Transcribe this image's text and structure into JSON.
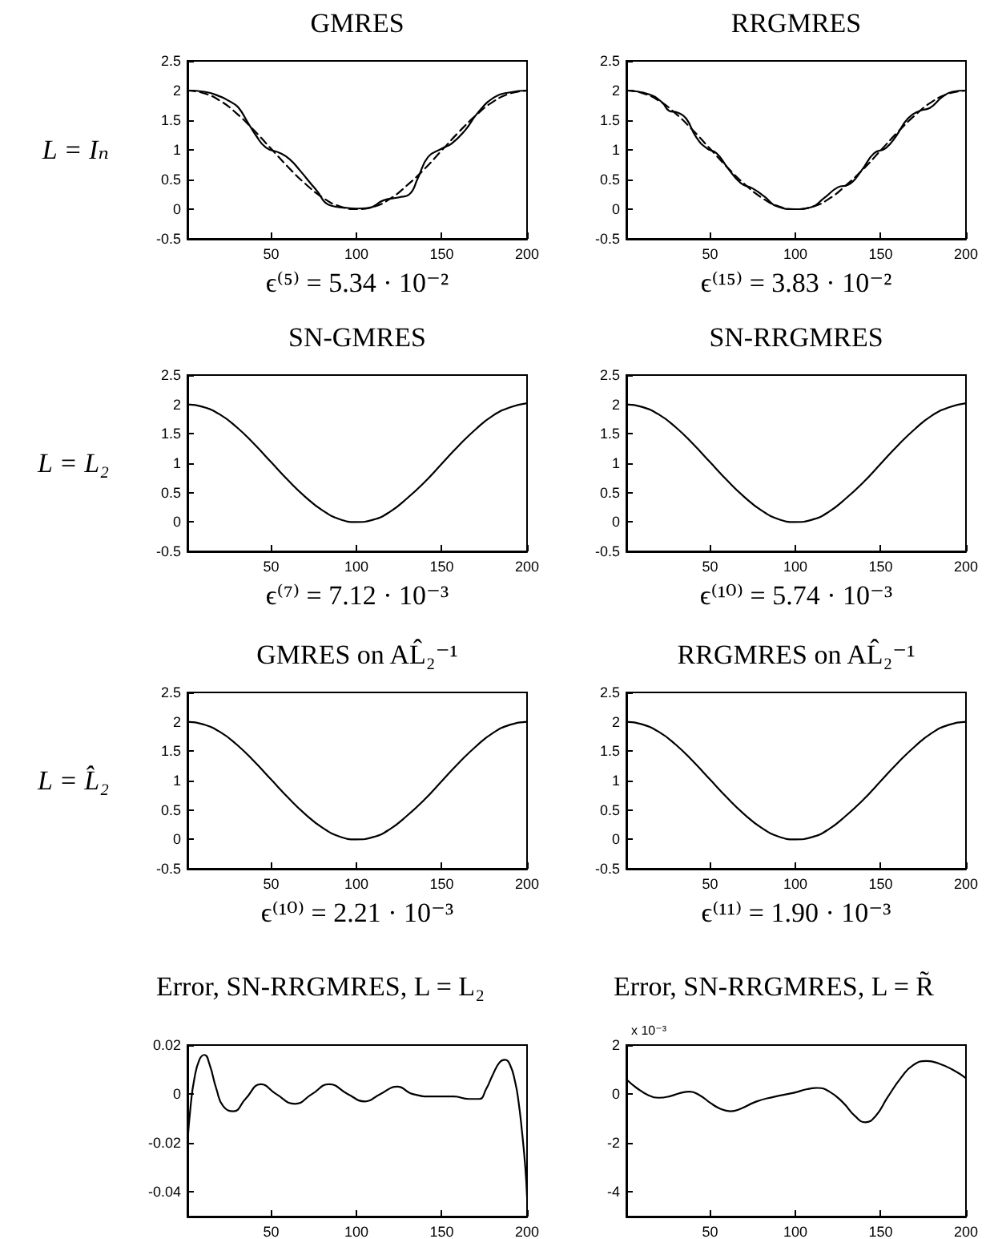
{
  "chart_data": [
    {
      "type": "line",
      "title": "GMRES",
      "ylabel": "L = Iₙ",
      "xlabel": "ϵ⁽⁵⁾ = 5.34 · 10⁻²",
      "xlim": [
        1,
        200
      ],
      "xticks": [
        50,
        100,
        150,
        200
      ],
      "ylim": [
        -0.5,
        2.5
      ],
      "yticks": [
        -0.5,
        0,
        0.5,
        1,
        1.5,
        2,
        2.5
      ],
      "series": [
        {
          "color": "#000000",
          "line_style": "solid",
          "x": [
            1,
            11,
            21,
            25,
            27,
            31,
            36,
            41,
            47,
            55,
            61,
            67,
            76,
            85,
            95,
            100,
            107,
            116,
            125,
            131,
            136,
            142,
            150,
            156,
            164,
            171,
            181,
            190,
            200
          ],
          "values": [
            2.0,
            1.98,
            1.89,
            1.83,
            1.8,
            1.71,
            1.48,
            1.25,
            1.04,
            0.95,
            0.84,
            0.65,
            0.34,
            0.06,
            0.02,
            0.01,
            0.02,
            0.15,
            0.2,
            0.25,
            0.52,
            0.88,
            1.02,
            1.11,
            1.34,
            1.62,
            1.89,
            1.97,
            2.0
          ]
        },
        {
          "color": "#000000",
          "line_style": "dashed",
          "x": [
            1,
            10,
            20,
            30,
            40,
            50,
            60,
            70,
            80,
            90,
            100,
            110,
            120,
            130,
            140,
            150,
            160,
            170,
            180,
            190,
            200
          ],
          "values": [
            2.0,
            1.96,
            1.83,
            1.61,
            1.33,
            1.02,
            0.71,
            0.43,
            0.2,
            0.05,
            0.0,
            0.04,
            0.18,
            0.41,
            0.68,
            0.99,
            1.3,
            1.58,
            1.81,
            1.95,
            2.0
          ]
        }
      ]
    },
    {
      "type": "line",
      "title": "RRGMRES",
      "xlabel": "ϵ⁽¹⁵⁾ = 3.83 · 10⁻²",
      "xlim": [
        1,
        200
      ],
      "xticks": [
        50,
        100,
        150,
        200
      ],
      "ylim": [
        -0.5,
        2.5
      ],
      "yticks": [
        -0.5,
        0,
        0.5,
        1,
        1.5,
        2,
        2.5
      ],
      "series": [
        {
          "color": "#000000",
          "line_style": "solid",
          "x": [
            1,
            14,
            22,
            26,
            31,
            36,
            42,
            48,
            54,
            60,
            68,
            75,
            82,
            89,
            100,
            109,
            117,
            125,
            131,
            139,
            146,
            153,
            159,
            166,
            173,
            179,
            186,
            192,
            200
          ],
          "values": [
            2.0,
            1.94,
            1.8,
            1.66,
            1.63,
            1.53,
            1.21,
            1.03,
            0.94,
            0.71,
            0.44,
            0.35,
            0.21,
            0.05,
            0.0,
            0.03,
            0.19,
            0.37,
            0.41,
            0.66,
            0.94,
            1.03,
            1.23,
            1.53,
            1.66,
            1.71,
            1.89,
            1.98,
            2.0
          ]
        },
        {
          "color": "#000000",
          "line_style": "dashed",
          "x": [
            1,
            10,
            20,
            30,
            40,
            50,
            60,
            70,
            80,
            90,
            100,
            110,
            120,
            130,
            140,
            150,
            160,
            170,
            180,
            190,
            200
          ],
          "values": [
            2.0,
            1.96,
            1.83,
            1.61,
            1.33,
            1.02,
            0.71,
            0.43,
            0.2,
            0.05,
            0.0,
            0.04,
            0.18,
            0.41,
            0.68,
            0.99,
            1.3,
            1.58,
            1.81,
            1.95,
            2.0
          ]
        }
      ]
    },
    {
      "type": "line",
      "title": "SN-GMRES",
      "ylabel": "L = L₂",
      "xlabel": "ϵ⁽⁷⁾ = 7.12 · 10⁻³",
      "xlim": [
        1,
        200
      ],
      "xticks": [
        50,
        100,
        150,
        200
      ],
      "ylim": [
        -0.5,
        2.5
      ],
      "yticks": [
        -0.5,
        0,
        0.5,
        1,
        1.5,
        2,
        2.5
      ],
      "series": [
        {
          "color": "#000000",
          "line_style": "solid",
          "x": [
            1,
            10,
            20,
            30,
            40,
            50,
            60,
            70,
            80,
            90,
            100,
            110,
            120,
            130,
            140,
            150,
            160,
            170,
            180,
            190,
            200
          ],
          "values": [
            2.0,
            1.96,
            1.83,
            1.61,
            1.33,
            1.02,
            0.71,
            0.43,
            0.2,
            0.05,
            0.0,
            0.04,
            0.18,
            0.41,
            0.68,
            0.99,
            1.3,
            1.58,
            1.81,
            1.95,
            2.02
          ]
        }
      ]
    },
    {
      "type": "line",
      "title": "SN-RRGMRES",
      "xlabel": "ϵ⁽¹⁰⁾ = 5.74 · 10⁻³",
      "xlim": [
        1,
        200
      ],
      "xticks": [
        50,
        100,
        150,
        200
      ],
      "ylim": [
        -0.5,
        2.5
      ],
      "yticks": [
        -0.5,
        0,
        0.5,
        1,
        1.5,
        2,
        2.5
      ],
      "series": [
        {
          "color": "#000000",
          "line_style": "solid",
          "x": [
            1,
            10,
            20,
            30,
            40,
            50,
            60,
            70,
            80,
            90,
            100,
            110,
            120,
            130,
            140,
            150,
            160,
            170,
            180,
            190,
            200
          ],
          "values": [
            2.0,
            1.96,
            1.83,
            1.61,
            1.33,
            1.02,
            0.71,
            0.43,
            0.2,
            0.05,
            0.0,
            0.04,
            0.18,
            0.41,
            0.68,
            0.99,
            1.3,
            1.58,
            1.81,
            1.95,
            2.02
          ]
        }
      ]
    },
    {
      "type": "line",
      "title": "GMRES on AL̂₂⁻¹",
      "ylabel": "L = L̂₂",
      "xlabel": "ϵ⁽¹⁰⁾ = 2.21 · 10⁻³",
      "xlim": [
        1,
        200
      ],
      "xticks": [
        50,
        100,
        150,
        200
      ],
      "ylim": [
        -0.5,
        2.5
      ],
      "yticks": [
        -0.5,
        0,
        0.5,
        1,
        1.5,
        2,
        2.5
      ],
      "series": [
        {
          "color": "#000000",
          "line_style": "solid",
          "x": [
            1,
            10,
            20,
            30,
            40,
            50,
            60,
            70,
            80,
            90,
            100,
            110,
            120,
            130,
            140,
            150,
            160,
            170,
            180,
            190,
            200
          ],
          "values": [
            2.0,
            1.96,
            1.83,
            1.61,
            1.33,
            1.02,
            0.71,
            0.43,
            0.2,
            0.05,
            0.0,
            0.04,
            0.18,
            0.41,
            0.68,
            0.99,
            1.3,
            1.58,
            1.81,
            1.95,
            2.0
          ]
        }
      ]
    },
    {
      "type": "line",
      "title": "RRGMRES on AL̂₂⁻¹",
      "xlabel": "ϵ⁽¹¹⁾ = 1.90 · 10⁻³",
      "xlim": [
        1,
        200
      ],
      "xticks": [
        50,
        100,
        150,
        200
      ],
      "ylim": [
        -0.5,
        2.5
      ],
      "yticks": [
        -0.5,
        0,
        0.5,
        1,
        1.5,
        2,
        2.5
      ],
      "series": [
        {
          "color": "#000000",
          "line_style": "solid",
          "x": [
            1,
            10,
            20,
            30,
            40,
            50,
            60,
            70,
            80,
            90,
            100,
            110,
            120,
            130,
            140,
            150,
            160,
            170,
            180,
            190,
            200
          ],
          "values": [
            2.0,
            1.96,
            1.83,
            1.61,
            1.33,
            1.02,
            0.71,
            0.43,
            0.2,
            0.05,
            0.0,
            0.04,
            0.18,
            0.41,
            0.68,
            0.99,
            1.3,
            1.58,
            1.81,
            1.95,
            2.0
          ]
        }
      ]
    },
    {
      "type": "line",
      "title": "Error, SN-RRGMRES, L = L₂",
      "xlim": [
        1,
        200
      ],
      "xticks": [
        50,
        100,
        150,
        200
      ],
      "ylim": [
        -0.05,
        0.02
      ],
      "yticks": [
        -0.04,
        -0.02,
        0,
        0.02
      ],
      "series": [
        {
          "color": "#000000",
          "line_style": "solid",
          "x": [
            1,
            3,
            5,
            8,
            11,
            14,
            18,
            22,
            28,
            35,
            44,
            53,
            64,
            74,
            84,
            95,
            105,
            114,
            124,
            133,
            145,
            157,
            166,
            172,
            176,
            180,
            184,
            187,
            190,
            193,
            195,
            197,
            199,
            200
          ],
          "values": [
            -0.02,
            -0.004,
            0.006,
            0.014,
            0.016,
            0.012,
            0.002,
            -0.005,
            -0.007,
            -0.002,
            0.004,
            0.0,
            -0.004,
            0.0,
            0.004,
            0.0,
            -0.003,
            0.0,
            0.003,
            0.0,
            -0.001,
            -0.001,
            -0.002,
            -0.002,
            0.002,
            0.008,
            0.013,
            0.014,
            0.012,
            0.005,
            -0.003,
            -0.015,
            -0.03,
            -0.042
          ]
        }
      ]
    },
    {
      "type": "line",
      "title": "Error, SN-RRGMRES, L = R̃",
      "annotations": [
        "x 10⁻³"
      ],
      "xlim": [
        1,
        200
      ],
      "xticks": [
        50,
        100,
        150,
        200
      ],
      "ylim": [
        -5,
        2
      ],
      "yticks": [
        -4,
        -2,
        0,
        2
      ],
      "series": [
        {
          "color": "#000000",
          "line_style": "solid",
          "x": [
            1,
            7,
            14,
            20,
            27,
            33,
            38,
            44,
            50,
            56,
            62,
            68,
            77,
            87,
            99,
            107,
            113,
            120,
            128,
            135,
            141,
            147,
            154,
            162,
            169,
            177,
            184,
            192,
            200
          ],
          "values": [
            0.6,
            0.25,
            -0.05,
            -0.15,
            -0.08,
            0.05,
            0.1,
            -0.05,
            -0.35,
            -0.6,
            -0.7,
            -0.6,
            -0.31,
            -0.12,
            0.05,
            0.2,
            0.25,
            0.1,
            -0.35,
            -0.9,
            -1.15,
            -0.9,
            -0.14,
            0.67,
            1.18,
            1.35,
            1.25,
            1.0,
            0.65
          ]
        }
      ]
    }
  ]
}
